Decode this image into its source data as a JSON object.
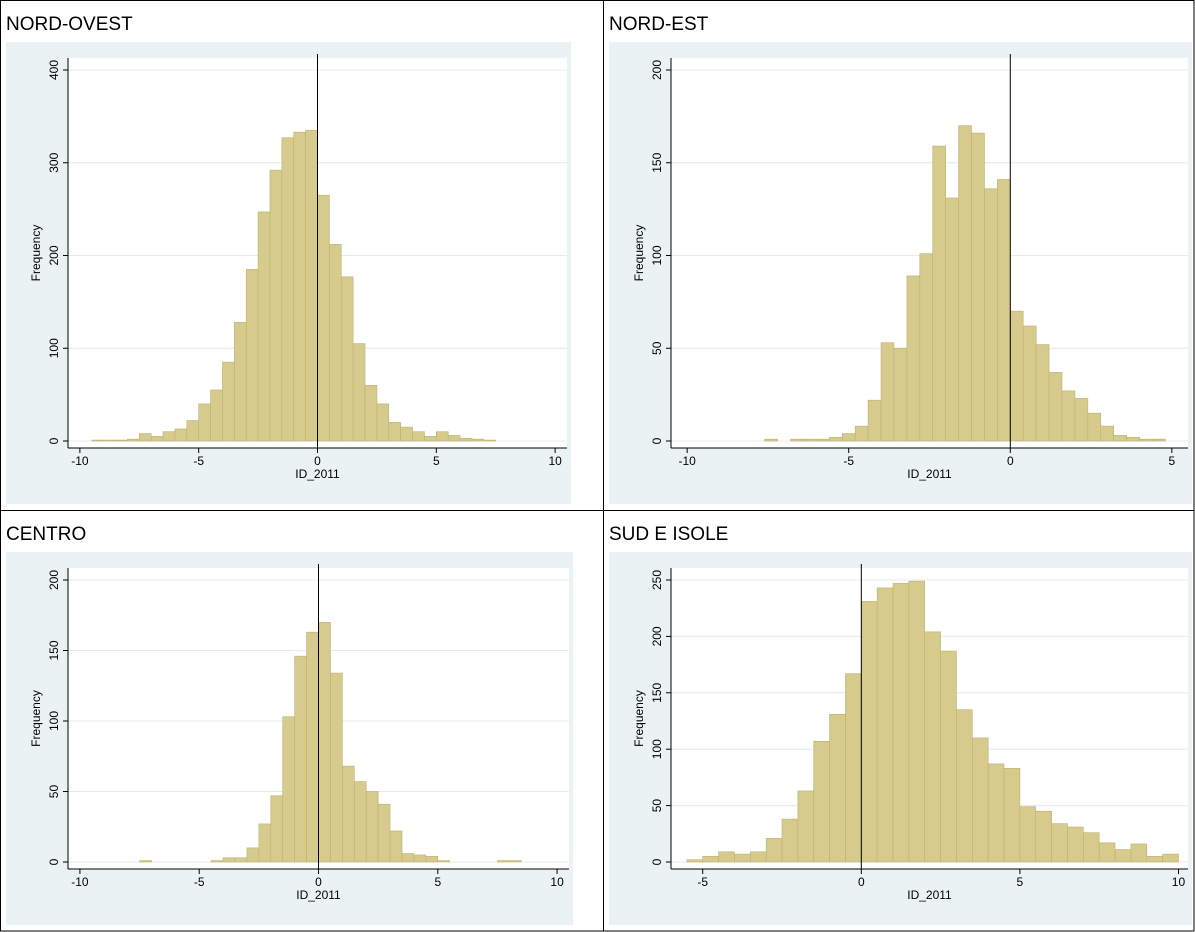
{
  "chart_data": [
    {
      "type": "histogram",
      "title": "NORD-OVEST",
      "xlabel": "ID_2011",
      "ylabel": "Frequency",
      "color": "#d6cb8c",
      "bins": [
        -9.5,
        -9,
        -8.5,
        -8,
        -7.5,
        -7,
        -6.5,
        -6,
        -5.5,
        -5,
        -4.5,
        -4,
        -3.5,
        -3,
        -2.5,
        -2,
        -1.5,
        -1,
        -0.5,
        0,
        0.5,
        1,
        1.5,
        2,
        2.5,
        3,
        3.5,
        4,
        4.5,
        5,
        5.5,
        6,
        6.5,
        7,
        7.5
      ],
      "values": [
        1,
        1,
        1,
        2,
        8,
        5,
        10,
        13,
        22,
        40,
        55,
        85,
        128,
        185,
        247,
        292,
        327,
        333,
        335,
        265,
        212,
        177,
        105,
        60,
        40,
        20,
        15,
        10,
        5,
        10,
        6,
        3,
        2,
        1
      ],
      "xlim": [
        -10.5,
        10.5
      ],
      "xticks": [
        -10,
        -5,
        0,
        5,
        10
      ],
      "ylim": [
        0,
        400
      ],
      "yticks": [
        0,
        100,
        200,
        300,
        400
      ],
      "xline": 0,
      "grid": true
    },
    {
      "type": "histogram",
      "title": "NORD-EST",
      "xlabel": "ID_2011",
      "ylabel": "Frequency",
      "color": "#d6cb8c",
      "bins": [
        -7.6,
        -7.2,
        -6.8,
        -6.4,
        -6,
        -5.6,
        -5.2,
        -4.8,
        -4.4,
        -4,
        -3.6,
        -3.2,
        -2.8,
        -2.4,
        -2,
        -1.6,
        -1.2,
        -0.8,
        -0.4,
        0,
        0.4,
        0.8,
        1.2,
        1.6,
        2,
        2.4,
        2.8,
        3.2,
        3.6,
        4,
        4.4,
        4.8
      ],
      "values": [
        1,
        0,
        1,
        1,
        1,
        2,
        4,
        8,
        22,
        53,
        50,
        89,
        101,
        159,
        131,
        170,
        166,
        136,
        141,
        70,
        62,
        52,
        37,
        27,
        23,
        15,
        8,
        3,
        2,
        1,
        1
      ],
      "xlim": [
        -10.5,
        5.5
      ],
      "xticks": [
        -10,
        -5,
        0,
        5
      ],
      "ylim": [
        0,
        200
      ],
      "yticks": [
        0,
        50,
        100,
        150,
        200
      ],
      "xline": 0,
      "grid": true
    },
    {
      "type": "histogram",
      "title": "CENTRO",
      "xlabel": "ID_2011",
      "ylabel": "Frequency",
      "color": "#d6cb8c",
      "bins": [
        -7.5,
        -7,
        -6.5,
        -6,
        -5.5,
        -5,
        -4.5,
        -4,
        -3.5,
        -3,
        -2.5,
        -2,
        -1.5,
        -1,
        -0.5,
        0,
        0.5,
        1,
        1.5,
        2,
        2.5,
        3,
        3.5,
        4,
        4.5,
        5,
        5.5,
        6,
        6.5,
        7,
        7.5,
        8,
        8.5
      ],
      "values": [
        1,
        0,
        0,
        0,
        0,
        0,
        1,
        3,
        3,
        10,
        27,
        47,
        103,
        146,
        163,
        170,
        134,
        68,
        57,
        50,
        41,
        22,
        6,
        5,
        4,
        1,
        0,
        0,
        0,
        0,
        1,
        1
      ],
      "xlim": [
        -10.5,
        10.5
      ],
      "xticks": [
        -10,
        -5,
        0,
        5,
        10
      ],
      "ylim": [
        0,
        200
      ],
      "yticks": [
        0,
        50,
        100,
        150,
        200
      ],
      "xline": 0,
      "grid": true
    },
    {
      "type": "histogram",
      "title": "SUD E ISOLE",
      "xlabel": "ID_2011",
      "ylabel": "Frequency",
      "color": "#d6cb8c",
      "bins": [
        -5.5,
        -5,
        -4.5,
        -4,
        -3.5,
        -3,
        -2.5,
        -2,
        -1.5,
        -1,
        -0.5,
        0,
        0.5,
        1,
        1.5,
        2,
        2.5,
        3,
        3.5,
        4,
        4.5,
        5,
        5.5,
        6,
        6.5,
        7,
        7.5,
        8,
        8.5,
        9,
        9.5,
        10
      ],
      "values": [
        2,
        5,
        9,
        7,
        9,
        21,
        38,
        63,
        107,
        131,
        167,
        231,
        243,
        247,
        249,
        204,
        187,
        135,
        110,
        87,
        83,
        49,
        45,
        34,
        31,
        26,
        17,
        11,
        16,
        5,
        7
      ],
      "xlim": [
        -6,
        10.3
      ],
      "xticks": [
        -5,
        0,
        5,
        10
      ],
      "ylim": [
        0,
        250
      ],
      "yticks": [
        0,
        50,
        100,
        150,
        200,
        250
      ],
      "xline": 0,
      "grid": true
    }
  ]
}
